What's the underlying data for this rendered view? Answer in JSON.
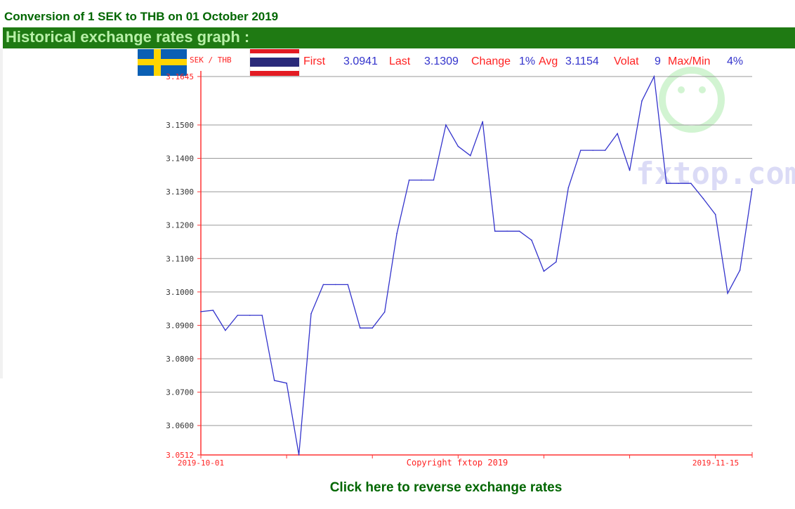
{
  "page": {
    "title": "Conversion of 1 SEK to THB on 01 October 2019",
    "section_heading": "Historical exchange rates graph :",
    "reverse_link": "Click here to reverse exchange rates",
    "copyright": "Copyright fxtop 2019",
    "watermark": "fxtop.com"
  },
  "stats": {
    "pair": "SEK / THB",
    "first_label": "First",
    "first_value": "3.0941",
    "last_label": "Last",
    "last_value": "3.1309",
    "change_label": "Change",
    "change_value": "1%",
    "avg_label": "Avg",
    "avg_value": "3.1154",
    "volat_label": "Volat",
    "volat_value": "9",
    "maxmin_label": "Max/Min",
    "maxmin_value": "4%"
  },
  "colors": {
    "title_green": "#006600",
    "bar_green": "#1f7a13",
    "bar_text": "#b8f0a8",
    "line": "#3333cc",
    "axis": "#ff3333",
    "grid": "#999999",
    "label_red": "#ff2222",
    "value_blue": "#3333cc"
  },
  "chart_data": {
    "type": "line",
    "title": "",
    "xlabel": "",
    "ylabel": "",
    "x_tick_labels": [
      "2019-10-01",
      "2019-11-15"
    ],
    "y_tick_labels": [
      "3.0512",
      "3.0600",
      "3.0700",
      "3.0800",
      "3.0900",
      "3.1000",
      "3.1100",
      "3.1200",
      "3.1300",
      "3.1400",
      "3.1500",
      "3.1645"
    ],
    "ylim": [
      3.0512,
      3.1645
    ],
    "xlim": [
      "2019-10-01",
      "2019-11-15"
    ],
    "grid": true,
    "series": [
      {
        "x": [
          "2019-10-01",
          "2019-10-02",
          "2019-10-03",
          "2019-10-04",
          "2019-10-05",
          "2019-10-06",
          "2019-10-07",
          "2019-10-08",
          "2019-10-09",
          "2019-10-10",
          "2019-10-11",
          "2019-10-12",
          "2019-10-13",
          "2019-10-14",
          "2019-10-15",
          "2019-10-16",
          "2019-10-17",
          "2019-10-18",
          "2019-10-19",
          "2019-10-20",
          "2019-10-21",
          "2019-10-22",
          "2019-10-23",
          "2019-10-24",
          "2019-10-25",
          "2019-10-26",
          "2019-10-27",
          "2019-10-28",
          "2019-10-29",
          "2019-10-30",
          "2019-10-31",
          "2019-11-01",
          "2019-11-02",
          "2019-11-03",
          "2019-11-04",
          "2019-11-05",
          "2019-11-06",
          "2019-11-07",
          "2019-11-08",
          "2019-11-09",
          "2019-11-10",
          "2019-11-11",
          "2019-11-12",
          "2019-11-13",
          "2019-11-14",
          "2019-11-15"
        ],
        "values": [
          3.0941,
          3.0945,
          3.0885,
          3.093,
          3.093,
          3.093,
          3.0735,
          3.0727,
          3.0512,
          3.0935,
          3.1022,
          3.1022,
          3.1022,
          3.0892,
          3.0892,
          3.094,
          3.1175,
          3.1335,
          3.1335,
          3.1335,
          3.15,
          3.1436,
          3.1408,
          3.151,
          3.1182,
          3.1182,
          3.1182,
          3.1155,
          3.1062,
          3.109,
          3.1312,
          3.1424,
          3.1424,
          3.1424,
          3.1474,
          3.1364,
          3.1572,
          3.1645,
          3.1325,
          3.1325,
          3.1325,
          3.128,
          3.1232,
          3.0996,
          3.1065,
          3.1309
        ]
      }
    ]
  }
}
